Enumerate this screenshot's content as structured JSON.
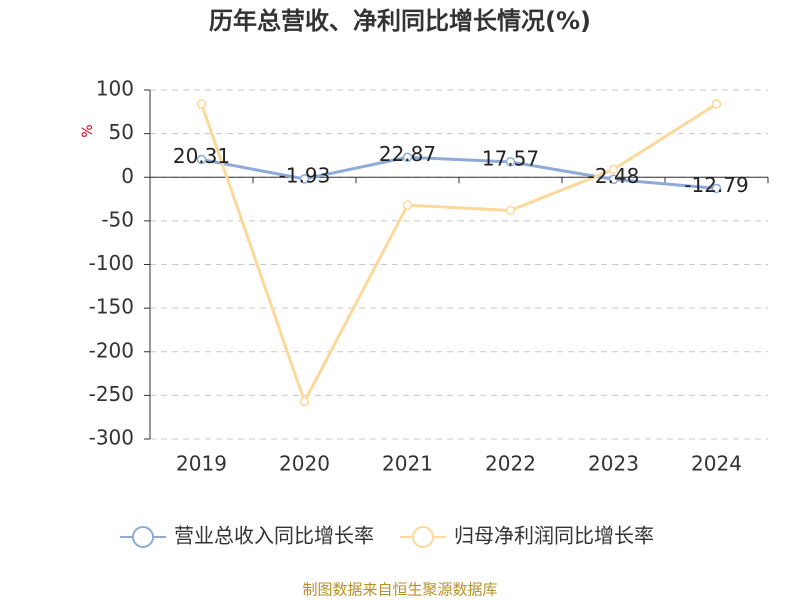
{
  "chart_data": {
    "type": "line",
    "title": "历年总营收、净利同比增长情况(%)",
    "y_label": "%",
    "categories": [
      "2019",
      "2020",
      "2021",
      "2022",
      "2023",
      "2024"
    ],
    "series": [
      {
        "name": "营业总收入同比增长率",
        "color": "#8eaad8",
        "values": [
          20.31,
          -1.93,
          22.87,
          17.57,
          -2.48,
          -12.79
        ],
        "show_labels": true
      },
      {
        "name": "归母净利润同比增长率",
        "color": "#fcd99a",
        "values": [
          84,
          -257,
          -32,
          -38,
          9,
          84
        ],
        "show_labels": false
      }
    ],
    "ylim": [
      -300,
      100
    ],
    "yticks": [
      -300,
      -250,
      -200,
      -150,
      -100,
      -50,
      0,
      50,
      100
    ],
    "grid": true,
    "legend": "bottom",
    "source": "制图数据来自恒生聚源数据库"
  }
}
